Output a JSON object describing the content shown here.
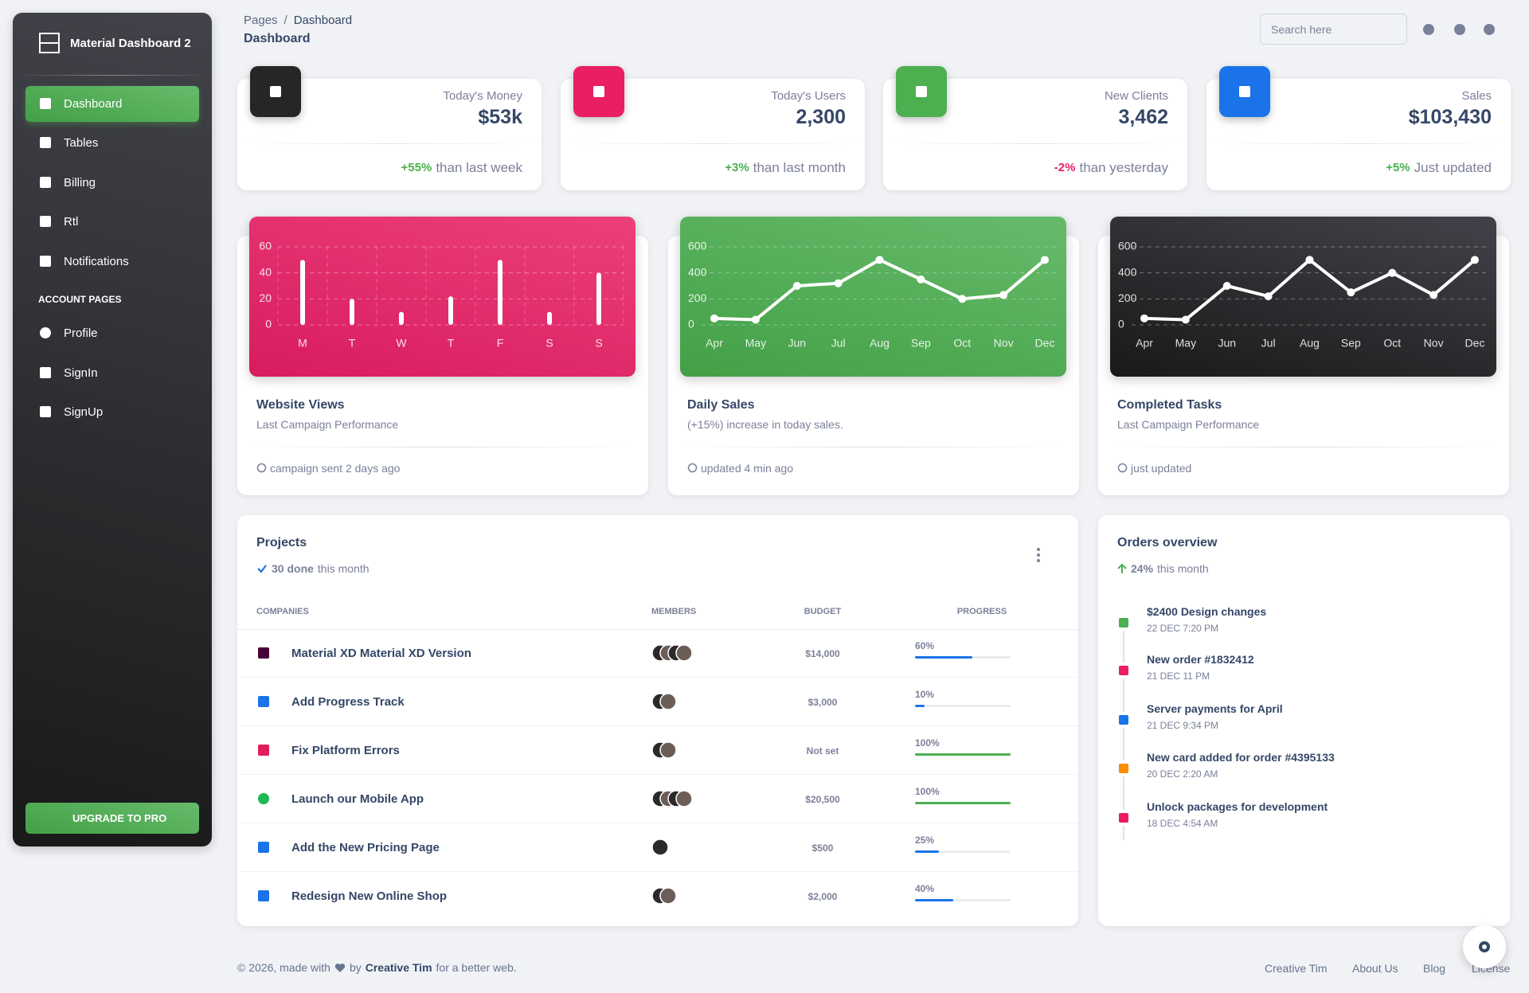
{
  "sidebar": {
    "brand": "Material Dashboard 2",
    "nav": [
      "Dashboard",
      "Tables",
      "Billing",
      "Rtl",
      "Notifications"
    ],
    "section": "ACCOUNT PAGES",
    "account": [
      "Profile",
      "SignIn",
      "SignUp"
    ],
    "upgrade": "UPGRADE TO PRO"
  },
  "header": {
    "breadcrumb": [
      "Pages",
      "Dashboard"
    ],
    "separator": "/",
    "title": "Dashboard",
    "search": "Search here"
  },
  "stats": [
    {
      "label": "Today's Money",
      "value": "$53k",
      "change": "+55%",
      "note": "than last week",
      "change_color": "#4caf50",
      "icon_color": "#262626"
    },
    {
      "label": "Today's Users",
      "value": "2,300",
      "change": "+3%",
      "note": "than last month",
      "change_color": "#4caf50",
      "icon_color": "#e91e63"
    },
    {
      "label": "New Clients",
      "value": "3,462",
      "change": "-2%",
      "note": "than yesterday",
      "change_color": "#e91e63",
      "icon_color": "#4caf50"
    },
    {
      "label": "Sales",
      "value": "$103,430",
      "change": "+5%",
      "note": "Just updated",
      "change_color": "#4caf50",
      "icon_color": "#1a73e8"
    }
  ],
  "chart_cards": [
    {
      "title": "Website Views",
      "subtitle": "Last Campaign Performance",
      "footer": "campaign sent 2 days ago",
      "background": "linear-gradient(195deg,#ec407a,#d81b60)"
    },
    {
      "title": "Daily Sales",
      "subtitle": "(+15%) increase in today sales.",
      "footer": "updated 4 min ago",
      "background": "linear-gradient(195deg,#66bb6a,#43a047)"
    },
    {
      "title": "Completed Tasks",
      "subtitle": "Last Campaign Performance",
      "footer": "just updated",
      "background": "linear-gradient(195deg,#42424a,#191919)"
    }
  ],
  "chart_data": [
    {
      "type": "bar",
      "categories": [
        "M",
        "T",
        "W",
        "T",
        "F",
        "S",
        "S"
      ],
      "values": [
        50,
        20,
        10,
        22,
        50,
        10,
        40
      ],
      "color": "#ffffff",
      "ylim": [
        0,
        60
      ],
      "yticks": [
        0,
        20,
        40,
        60
      ],
      "grid": true
    },
    {
      "type": "line",
      "categories": [
        "Apr",
        "May",
        "Jun",
        "Jul",
        "Aug",
        "Sep",
        "Oct",
        "Nov",
        "Dec"
      ],
      "values": [
        50,
        40,
        300,
        320,
        500,
        350,
        200,
        230,
        500
      ],
      "color": "#ffffff",
      "ylim": [
        0,
        600
      ],
      "yticks": [
        0,
        200,
        400,
        600
      ],
      "grid": true
    },
    {
      "type": "line",
      "categories": [
        "Apr",
        "May",
        "Jun",
        "Jul",
        "Aug",
        "Sep",
        "Oct",
        "Nov",
        "Dec"
      ],
      "values": [
        50,
        40,
        300,
        220,
        500,
        250,
        400,
        230,
        500
      ],
      "color": "#ffffff",
      "ylim": [
        0,
        600
      ],
      "yticks": [
        0,
        200,
        400,
        600
      ],
      "grid": true
    }
  ],
  "projects": {
    "title": "Projects",
    "done": "30 done",
    "done_note": "this month",
    "columns": [
      "COMPANIES",
      "MEMBERS",
      "BUDGET",
      "PROGRESS"
    ],
    "rows": [
      {
        "company": "Material XD Material XD Version",
        "budget": "$14,000",
        "progress": 60,
        "progress_label": "60%",
        "color": "#1a73e8"
      },
      {
        "company": "Add Progress Track",
        "budget": "$3,000",
        "progress": 10,
        "progress_label": "10%",
        "color": "#1a73e8"
      },
      {
        "company": "Fix Platform Errors",
        "budget": "Not set",
        "progress": 100,
        "progress_label": "100%",
        "color": "#4caf50"
      },
      {
        "company": "Launch our Mobile App",
        "budget": "$20,500",
        "progress": 100,
        "progress_label": "100%",
        "color": "#4caf50"
      },
      {
        "company": "Add the New Pricing Page",
        "budget": "$500",
        "progress": 25,
        "progress_label": "25%",
        "color": "#1a73e8"
      },
      {
        "company": "Redesign New Online Shop",
        "budget": "$2,000",
        "progress": 40,
        "progress_label": "40%",
        "color": "#1a73e8"
      }
    ]
  },
  "orders": {
    "title": "Orders overview",
    "change": "24%",
    "note": "this month",
    "items": [
      {
        "title": "$2400 Design changes",
        "time": "22 DEC 7:20 PM",
        "color": "#4caf50"
      },
      {
        "title": "New order #1832412",
        "time": "21 DEC 11 PM",
        "color": "#e91e63"
      },
      {
        "title": "Server payments for April",
        "time": "21 DEC 9:34 PM",
        "color": "#1a73e8"
      },
      {
        "title": "New card added for order #4395133",
        "time": "20 DEC 2:20 AM",
        "color": "#fb8c00"
      },
      {
        "title": "Unlock packages for development",
        "time": "18 DEC 4:54 AM",
        "color": "#e91e63"
      }
    ]
  },
  "footer": {
    "copyright": "© 2026, made with",
    "by": "by",
    "author": "Creative Tim",
    "tail": "for a better web.",
    "links": [
      "Creative Tim",
      "About Us",
      "Blog",
      "License"
    ]
  }
}
